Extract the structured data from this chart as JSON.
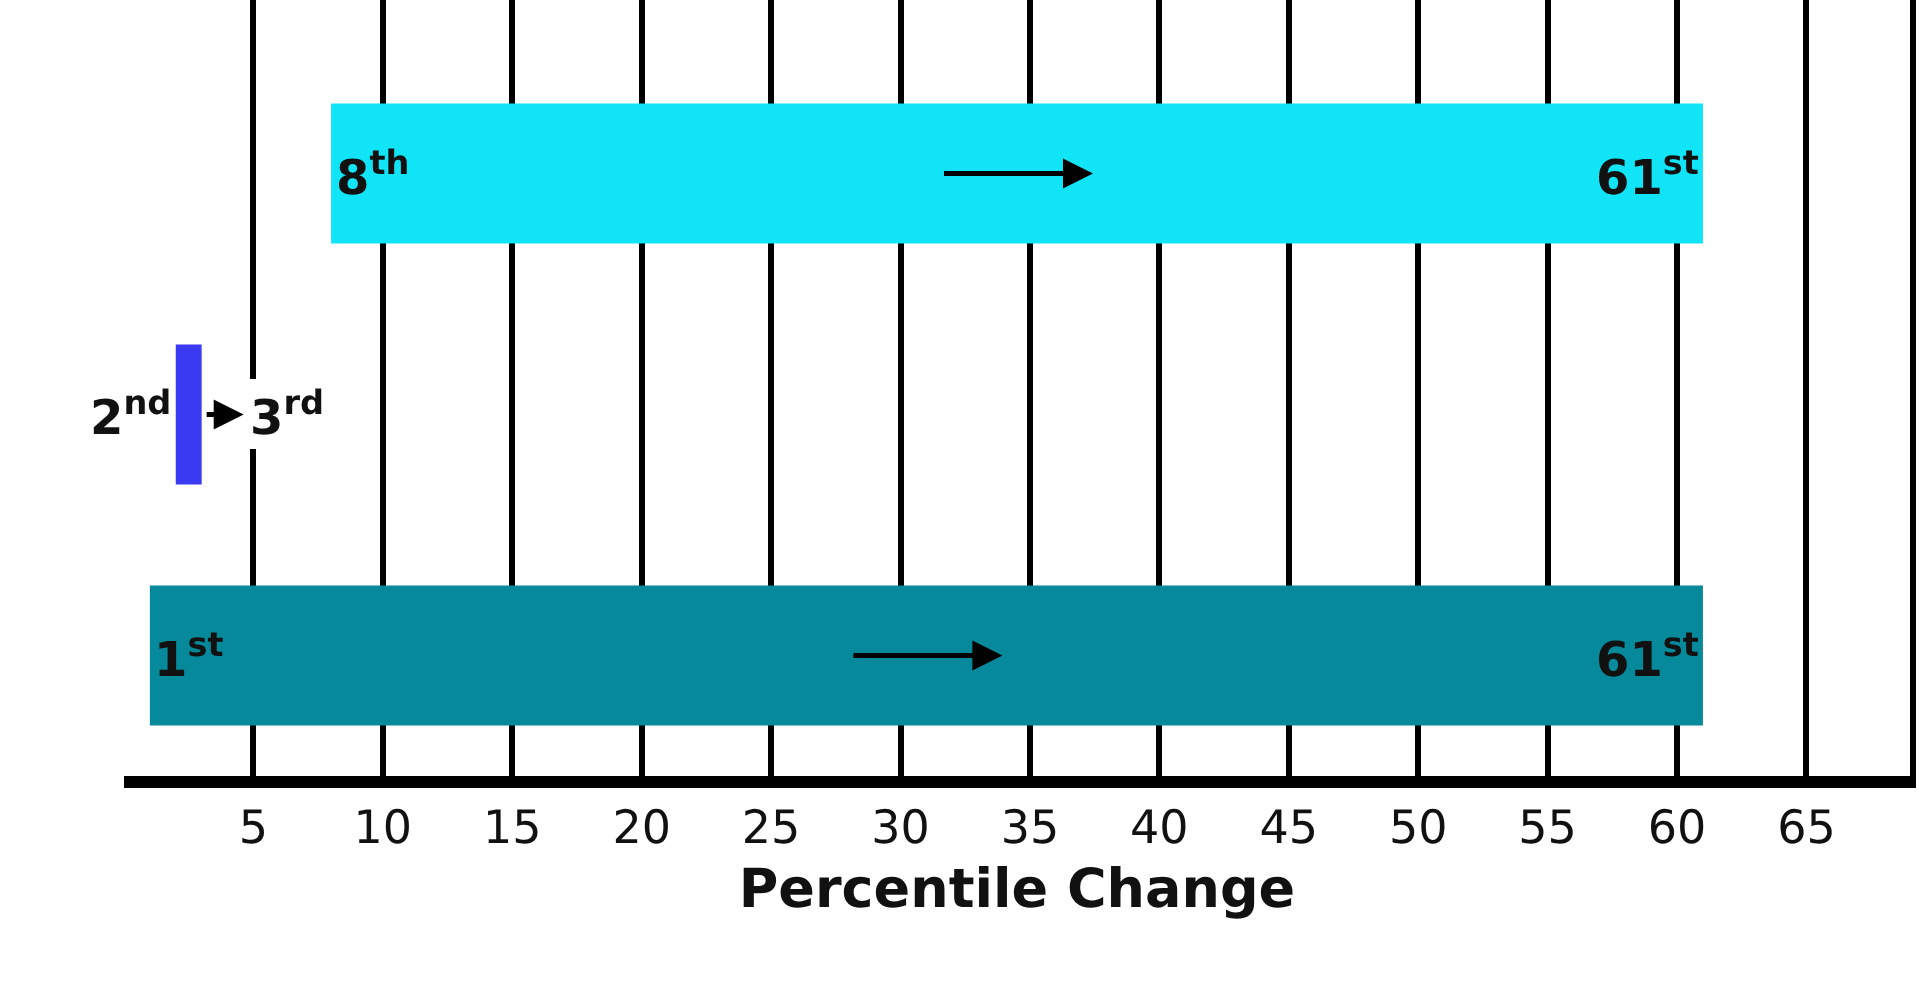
{
  "chart_data": {
    "type": "bar",
    "orientation": "horizontal",
    "categories": [
      null,
      null,
      null
    ],
    "base": [
      8,
      2,
      1
    ],
    "values": [
      53,
      1,
      60
    ],
    "colors": [
      "#10e4f6",
      "#3a3af2",
      "#06899a"
    ],
    "xlabel": "Percentile Change",
    "xlim": [
      0,
      69
    ],
    "xticks": [
      5,
      10,
      15,
      20,
      25,
      30,
      35,
      40,
      45,
      50,
      55,
      60,
      65
    ],
    "grid": "x",
    "tick_labels": "x",
    "legend": false,
    "annotations": [
      {
        "text": "8$^{th}$",
        "x": 8
      },
      {
        "text": "61$^{st}$",
        "x": 61
      },
      {
        "text": "2$^{nd}$",
        "x": 2
      },
      {
        "text": "3$^{rd}$",
        "x": 3
      },
      {
        "text": "1$^{st}$",
        "x": 1
      },
      {
        "text": "61$^{st}$",
        "x": 61
      }
    ]
  }
}
